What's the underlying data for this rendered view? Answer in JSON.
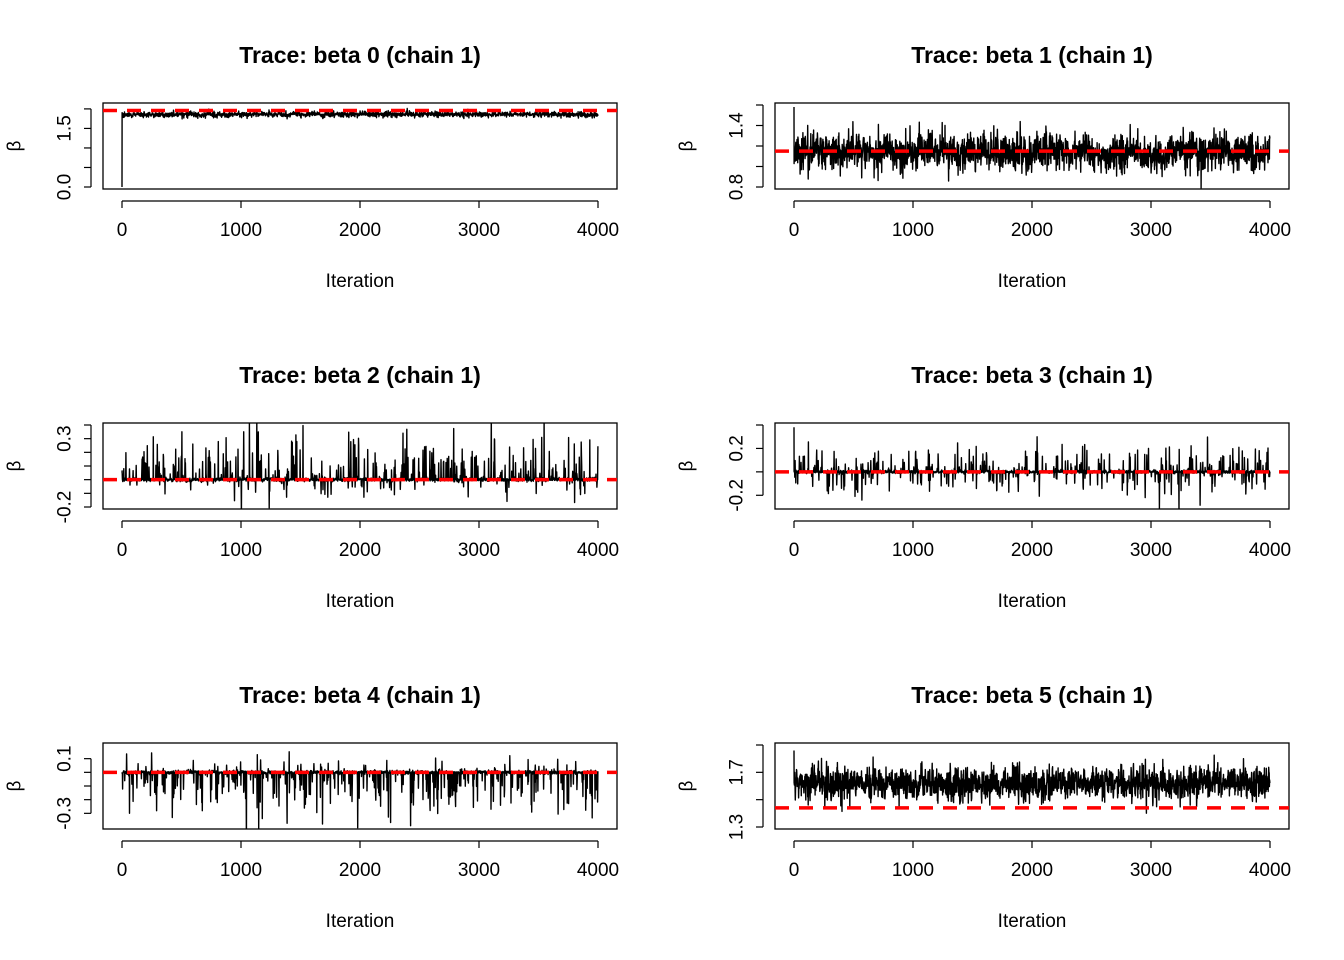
{
  "figure": {
    "background": "#ffffff",
    "trace_color": "#000000",
    "reference_color": "#ff0000"
  },
  "chart_data": [
    {
      "type": "line",
      "title": "Trace: beta 0 (chain 1)",
      "xlabel": "Iteration",
      "ylabel": "β",
      "xlim": [
        0,
        4000
      ],
      "ylim": [
        0,
        2.1
      ],
      "xticks": [
        0,
        1000,
        2000,
        3000,
        4000
      ],
      "yticks": [
        0,
        0.5,
        1,
        1.5,
        2
      ],
      "ytick_labels": [
        "0.0",
        "",
        "",
        "1.5",
        ""
      ],
      "reference_line": 1.96,
      "trace": {
        "start": 0.0,
        "center": 1.86,
        "spread": 0.06,
        "excursion": 0.02,
        "skew": 0,
        "seed": 11
      }
    },
    {
      "type": "line",
      "title": "Trace: beta 1 (chain 1)",
      "xlabel": "Iteration",
      "ylabel": "β",
      "xlim": [
        0,
        4000
      ],
      "ylim": [
        0.8,
        1.6
      ],
      "xticks": [
        0,
        1000,
        2000,
        3000,
        4000
      ],
      "yticks": [
        0.8,
        1.0,
        1.2,
        1.4,
        1.6
      ],
      "ytick_labels": [
        "0.8",
        "",
        "",
        "1.4",
        ""
      ],
      "reference_line": 1.15,
      "trace": {
        "start": 1.58,
        "center": 1.14,
        "spread": 0.14,
        "excursion": 0.08,
        "skew": 0,
        "seed": 23
      }
    },
    {
      "type": "line",
      "title": "Trace: beta 2 (chain 1)",
      "xlabel": "Iteration",
      "ylabel": "β",
      "xlim": [
        0,
        4000
      ],
      "ylim": [
        -0.2,
        0.4
      ],
      "xticks": [
        0,
        1000,
        2000,
        3000,
        4000
      ],
      "yticks": [
        -0.2,
        -0.1,
        0,
        0.1,
        0.2,
        0.3,
        0.4
      ],
      "ytick_labels": [
        "-0.2",
        "",
        "",
        "",
        "",
        "0.3",
        ""
      ],
      "reference_line": 0.0,
      "trace": {
        "start": 0.05,
        "center": 0.0,
        "spread": 0.01,
        "excursion": 0.22,
        "skew": 1,
        "seed": 37
      }
    },
    {
      "type": "line",
      "title": "Trace: beta 3 (chain 1)",
      "xlabel": "Iteration",
      "ylabel": "β",
      "xlim": [
        0,
        4000
      ],
      "ylim": [
        -0.3,
        0.4
      ],
      "xticks": [
        0,
        1000,
        2000,
        3000,
        4000
      ],
      "yticks": [
        -0.2,
        0,
        0.2,
        0.4
      ],
      "ytick_labels": [
        "-0.2",
        "",
        "0.2",
        ""
      ],
      "reference_line": 0.0,
      "trace": {
        "start": 0.38,
        "center": 0.0,
        "spread": 0.01,
        "excursion": 0.16,
        "skew": 0,
        "seed": 41
      }
    },
    {
      "type": "line",
      "title": "Trace: beta 4 (chain 1)",
      "xlabel": "Iteration",
      "ylabel": "β",
      "xlim": [
        0,
        4000
      ],
      "ylim": [
        -0.4,
        0.2
      ],
      "xticks": [
        0,
        1000,
        2000,
        3000,
        4000
      ],
      "yticks": [
        -0.3,
        -0.2,
        -0.1,
        0,
        0.1
      ],
      "ytick_labels": [
        "-0.3",
        "",
        "",
        "",
        "0.1"
      ],
      "reference_line": 0.0,
      "trace": {
        "start": 0.0,
        "center": 0.0,
        "spread": 0.01,
        "excursion": 0.22,
        "skew": -1,
        "seed": 53
      }
    },
    {
      "type": "line",
      "title": "Trace: beta 5 (chain 1)",
      "xlabel": "Iteration",
      "ylabel": "β",
      "xlim": [
        0,
        4000
      ],
      "ylim": [
        1.3,
        1.9
      ],
      "xticks": [
        0,
        1000,
        2000,
        3000,
        4000
      ],
      "yticks": [
        1.3,
        1.5,
        1.7,
        1.9
      ],
      "ytick_labels": [
        "1.3",
        "",
        "1.7",
        ""
      ],
      "reference_line": 1.44,
      "trace": {
        "start": 1.86,
        "center": 1.62,
        "spread": 0.1,
        "excursion": 0.06,
        "skew": 0,
        "seed": 67
      }
    }
  ]
}
